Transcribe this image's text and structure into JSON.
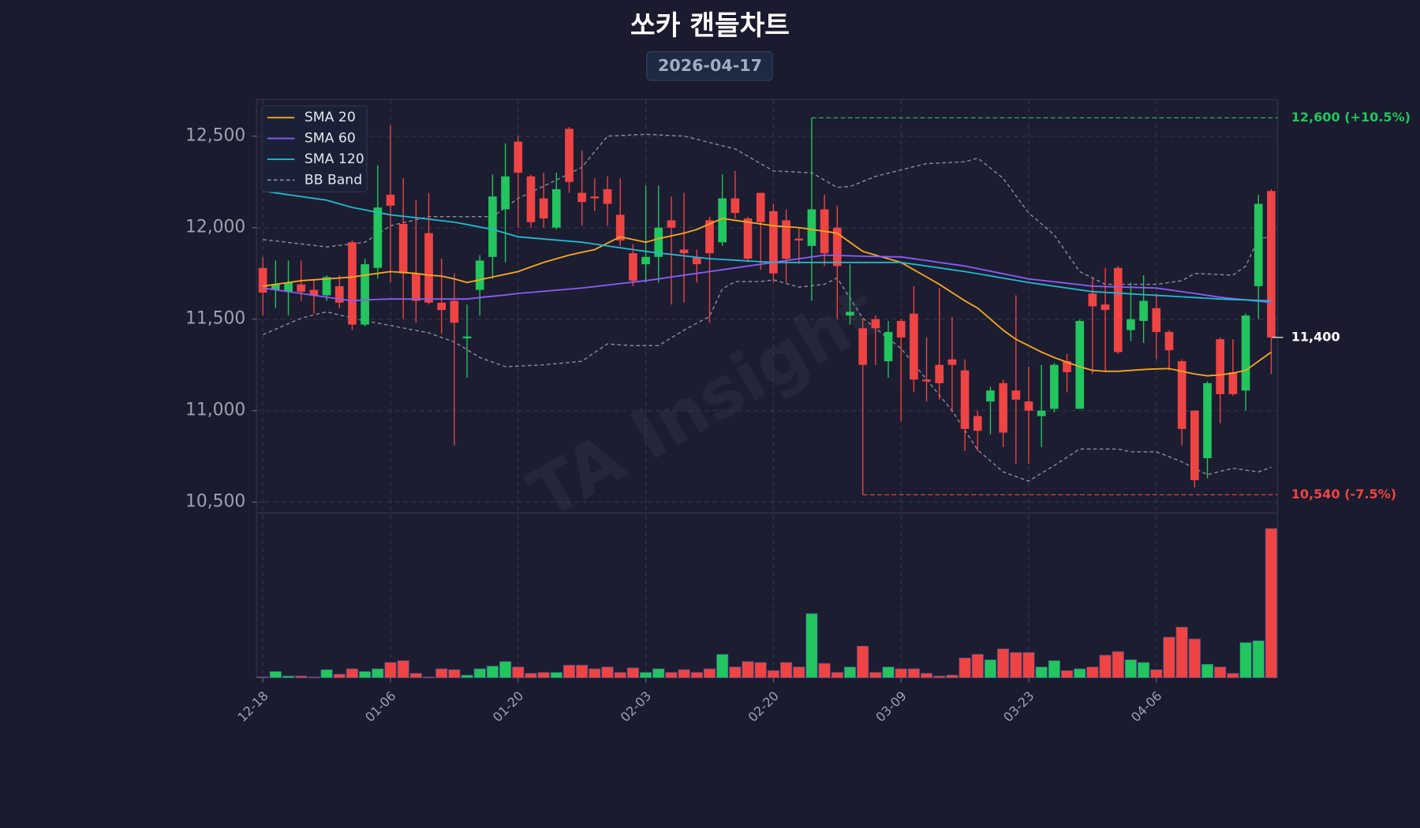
{
  "chart_data": {
    "type": "candlestick",
    "title": "쏘카 캔들차트",
    "subtitle": "2026-04-17",
    "watermark": "TA Insight",
    "categories": [
      "12-18",
      null,
      null,
      null,
      null,
      null,
      null,
      null,
      null,
      null,
      "01-06",
      null,
      null,
      null,
      null,
      null,
      null,
      null,
      null,
      null,
      "01-20",
      null,
      null,
      null,
      null,
      null,
      null,
      null,
      null,
      null,
      "02-03",
      null,
      null,
      null,
      null,
      null,
      null,
      null,
      null,
      null,
      "02-20",
      null,
      null,
      null,
      null,
      null,
      null,
      null,
      null,
      null,
      "03-09",
      null,
      null,
      null,
      null,
      null,
      null,
      null,
      null,
      null,
      "03-23",
      null,
      null,
      null,
      null,
      null,
      null,
      null,
      null,
      null,
      "04-06",
      null,
      null,
      null,
      null,
      null,
      null,
      null,
      null,
      null
    ],
    "open": [
      11780,
      11660,
      11650,
      11690,
      11660,
      11630,
      11680,
      11920,
      11470,
      11780,
      12180,
      12020,
      11750,
      11970,
      11590,
      11600,
      11395,
      11660,
      11840,
      12100,
      12470,
      12280,
      12160,
      12000,
      12540,
      12190,
      12170,
      12210,
      12070,
      11860,
      11800,
      11840,
      12040,
      11880,
      11840,
      12040,
      11920,
      12160,
      12050,
      12190,
      12090,
      12040,
      11940,
      11900,
      12100,
      12000,
      11520,
      11450,
      11500,
      11270,
      11490,
      11530,
      11170,
      11250,
      11280,
      11220,
      10970,
      11050,
      11150,
      11110,
      11050,
      10970,
      11010,
      11270,
      11010,
      11640,
      11580,
      11780,
      11440,
      11490,
      11560,
      11430,
      11270,
      11000,
      10740,
      11390,
      11210,
      11110,
      11680,
      12200
    ],
    "high": [
      11840,
      11820,
      11820,
      11820,
      11720,
      11740,
      11740,
      11930,
      11830,
      12340,
      12560,
      12270,
      12150,
      12190,
      11830,
      11750,
      11580,
      11850,
      12290,
      12460,
      12500,
      12290,
      12300,
      12300,
      12550,
      12420,
      12270,
      12280,
      12270,
      11910,
      12230,
      12230,
      12170,
      12190,
      11880,
      12060,
      12290,
      12310,
      12060,
      12190,
      12130,
      12100,
      12000,
      12600,
      12180,
      12120,
      11800,
      11500,
      11520,
      11490,
      11500,
      11680,
      11400,
      11670,
      11510,
      11280,
      11000,
      11130,
      11170,
      11630,
      11240,
      11250,
      11260,
      11310,
      11500,
      11720,
      11780,
      11790,
      11700,
      11740,
      11640,
      11440,
      11280,
      11000,
      11160,
      11400,
      11390,
      11530,
      12180,
      12210
    ],
    "low": [
      11520,
      11560,
      11520,
      11600,
      11530,
      11600,
      11560,
      11440,
      11460,
      11720,
      11700,
      11500,
      11480,
      11580,
      11420,
      10810,
      11180,
      11520,
      11720,
      11810,
      12000,
      12000,
      12000,
      11990,
      12190,
      12010,
      12090,
      12010,
      11900,
      11680,
      11700,
      11700,
      11580,
      11590,
      11700,
      11480,
      11900,
      12050,
      11810,
      11770,
      11700,
      11700,
      11800,
      11600,
      11790,
      11500,
      11470,
      10540,
      11250,
      11180,
      10940,
      11100,
      11050,
      11060,
      10990,
      10780,
      10780,
      10870,
      10800,
      10710,
      10710,
      10800,
      10990,
      11100,
      11010,
      11200,
      11210,
      11310,
      11380,
      11370,
      11280,
      11220,
      10810,
      10580,
      10630,
      10930,
      11080,
      11000,
      11500,
      11200
    ],
    "close": [
      11645,
      11690,
      11700,
      11650,
      11630,
      11730,
      11590,
      11470,
      11800,
      12110,
      12120,
      11750,
      11600,
      11590,
      11550,
      11480,
      11405,
      11820,
      12170,
      12280,
      12300,
      12030,
      12050,
      12210,
      12250,
      12140,
      12160,
      12130,
      11930,
      11710,
      11840,
      12000,
      12000,
      11860,
      11800,
      11860,
      12160,
      12080,
      11830,
      12030,
      11750,
      11830,
      11930,
      12100,
      11860,
      11790,
      11540,
      11250,
      11450,
      11430,
      11400,
      11170,
      11160,
      11150,
      11250,
      10900,
      10890,
      11110,
      10880,
      11060,
      11000,
      11000,
      11250,
      11210,
      11490,
      11570,
      11550,
      11320,
      11500,
      11600,
      11430,
      11330,
      10900,
      10620,
      11150,
      11090,
      11090,
      11520,
      12130,
      11400
    ],
    "volume": [
      1000,
      7000,
      2000,
      2000,
      1000,
      9000,
      4000,
      10000,
      7000,
      10000,
      17000,
      19000,
      5000,
      1000,
      10000,
      9000,
      3000,
      10000,
      13000,
      18000,
      12000,
      5000,
      6000,
      6000,
      14000,
      14000,
      10000,
      12000,
      6000,
      11000,
      6000,
      10000,
      6000,
      9000,
      6000,
      10000,
      26000,
      12000,
      18000,
      17000,
      8000,
      17000,
      12000,
      71000,
      16000,
      6000,
      12000,
      35000,
      6000,
      12000,
      10000,
      10000,
      5000,
      2000,
      3000,
      22000,
      26000,
      20000,
      32000,
      28000,
      28000,
      12000,
      19000,
      8000,
      10000,
      12000,
      25000,
      29000,
      20000,
      17000,
      9000,
      45000,
      56000,
      43000,
      15000,
      12000,
      5000,
      39000,
      41000,
      165000
    ],
    "up_color": "#22c55e",
    "down_color": "#ef4444",
    "lines": [
      {
        "name": "SMA 20",
        "color": "#f5a623",
        "values": [
          11680,
          11690,
          11700,
          11710,
          11715,
          11720,
          11725,
          11730,
          11740,
          11750,
          11760,
          11755,
          11750,
          11740,
          11735,
          11720,
          11700,
          11715,
          11730,
          11745,
          11760,
          11785,
          11810,
          11830,
          11850,
          11865,
          11880,
          11915,
          11950,
          11935,
          11920,
          11940,
          11955,
          11970,
          11990,
          12020,
          12050,
          12040,
          12030,
          12020,
          12010,
          12005,
          12000,
          11990,
          11980,
          11970,
          11920,
          11870,
          11850,
          11830,
          11810,
          11770,
          11730,
          11690,
          11645,
          11600,
          11560,
          11500,
          11440,
          11390,
          11355,
          11320,
          11290,
          11265,
          11240,
          11220,
          11215,
          11215,
          11220,
          11225,
          11228,
          11230,
          11215,
          11200,
          11190,
          11195,
          11205,
          11220,
          11270,
          11320
        ]
      },
      {
        "name": "SMA 60",
        "color": "#8b5cf6",
        "values": [
          11670,
          11660,
          11650,
          11640,
          11630,
          11620,
          11610,
          11600,
          11605,
          11608,
          11610,
          11610,
          11610,
          11610,
          11610,
          11610,
          11610,
          11618,
          11625,
          11632,
          11640,
          11646,
          11652,
          11658,
          11664,
          11670,
          11678,
          11686,
          11694,
          11702,
          11710,
          11720,
          11730,
          11740,
          11750,
          11760,
          11770,
          11780,
          11790,
          11800,
          11810,
          11820,
          11830,
          11840,
          11850,
          11848,
          11846,
          11844,
          11842,
          11841,
          11840,
          11830,
          11820,
          11810,
          11800,
          11790,
          11776,
          11762,
          11748,
          11734,
          11720,
          11712,
          11704,
          11696,
          11688,
          11680,
          11678,
          11676,
          11674,
          11672,
          11670,
          11660,
          11650,
          11640,
          11630,
          11620,
          11612,
          11605,
          11598,
          11590
        ]
      },
      {
        "name": "SMA 120",
        "color": "#22b8cf",
        "values": [
          12200,
          12190,
          12180,
          12170,
          12160,
          12150,
          12130,
          12110,
          12097,
          12083,
          12070,
          12062,
          12054,
          12046,
          12038,
          12030,
          12017,
          12003,
          11990,
          11970,
          11950,
          11944,
          11938,
          11932,
          11926,
          11920,
          11910,
          11900,
          11890,
          11880,
          11870,
          11862,
          11854,
          11846,
          11838,
          11830,
          11826,
          11822,
          11818,
          11814,
          11810,
          11810,
          11810,
          11810,
          11810,
          11810,
          11810,
          11810,
          11810,
          11810,
          11810,
          11800,
          11790,
          11780,
          11770,
          11760,
          11748,
          11736,
          11724,
          11712,
          11700,
          11690,
          11680,
          11670,
          11660,
          11650,
          11646,
          11642,
          11638,
          11634,
          11630,
          11626,
          11622,
          11618,
          11614,
          11610,
          11607,
          11605,
          11602,
          11600
        ]
      }
    ],
    "bollinger": {
      "name": "BB Band",
      "color": "#8a8f9e",
      "upper": [
        11935,
        11927,
        11919,
        11911,
        11903,
        11895,
        11903,
        11911,
        11920,
        11965,
        12010,
        12027,
        12043,
        12060,
        12060,
        12060,
        12060,
        12060,
        12060,
        12110,
        12160,
        12193,
        12227,
        12260,
        12295,
        12330,
        12415,
        12500,
        12503,
        12507,
        12510,
        12507,
        12503,
        12500,
        12483,
        12465,
        12448,
        12430,
        12390,
        12350,
        12310,
        12307,
        12303,
        12300,
        12260,
        12220,
        12225,
        12252,
        12280,
        12298,
        12315,
        12333,
        12350,
        12353,
        12357,
        12360,
        12380,
        12325,
        12270,
        12175,
        12080,
        12020,
        11960,
        11860,
        11760,
        11725,
        11690,
        11690,
        11690,
        11690,
        11690,
        11700,
        11710,
        11750,
        11747,
        11743,
        11740,
        11790,
        11940,
        11950
      ],
      "lower": [
        11415,
        11445,
        11475,
        11505,
        11523,
        11540,
        11523,
        11507,
        11490,
        11478,
        11465,
        11452,
        11438,
        11425,
        11400,
        11375,
        11333,
        11290,
        11265,
        11240,
        11243,
        11247,
        11250,
        11257,
        11263,
        11270,
        11318,
        11365,
        11360,
        11355,
        11355,
        11355,
        11398,
        11440,
        11478,
        11515,
        11665,
        11705,
        11705,
        11705,
        11715,
        11695,
        11675,
        11683,
        11690,
        11725,
        11615,
        11505,
        11450,
        11395,
        11340,
        11255,
        11170,
        11085,
        11000,
        10893,
        10785,
        10725,
        10665,
        10640,
        10615,
        10658,
        10700,
        10745,
        10790,
        10790,
        10790,
        10790,
        10775,
        10775,
        10775,
        10748,
        10720,
        10685,
        10650,
        10668,
        10685,
        10675,
        10665,
        10690
      ]
    },
    "annotations": [
      {
        "value": 12600,
        "label": "12,600 (+10.5%)",
        "color": "#22c55e"
      },
      {
        "value": 10540,
        "label": "10,540 (-7.5%)",
        "color": "#ef4444"
      }
    ],
    "last_price": {
      "value": 11400,
      "label": "11,400"
    },
    "ylim": [
      10440,
      12700
    ],
    "yticks": [
      {
        "value": 10500,
        "label": "10,500"
      },
      {
        "value": 11000,
        "label": "11,000"
      },
      {
        "value": 11500,
        "label": "11,500"
      },
      {
        "value": 12000,
        "label": "12,000"
      },
      {
        "value": 12500,
        "label": "12,500"
      }
    ],
    "vlim": [
      0,
      165000
    ],
    "grid": true,
    "legend": "upper left"
  }
}
